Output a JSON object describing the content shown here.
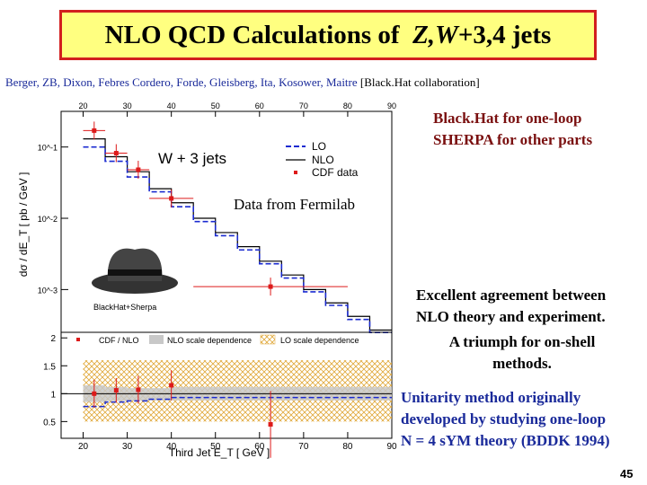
{
  "title": {
    "prefix": "NLO QCD Calculations of",
    "process": "Z,W",
    "suffix": "+3,4 jets"
  },
  "authors": "Berger, ZB, Dixon, Febres Cordero, Forde, Gleisberg, Ita, Kosower, Maitre",
  "collab": "[Black.Hat collaboration]",
  "notes": {
    "blackhat_line1": "Black.Hat for one-loop",
    "blackhat_line2": "SHERPA for other parts",
    "data_source": "Data from Fermilab",
    "agreement_line1": "Excellent agreement between",
    "agreement_line2": "NLO theory and experiment.",
    "triumph_line1": "A triumph for on-shell",
    "triumph_line2": "methods.",
    "unitarity_line1": "Unitarity method originally",
    "unitarity_line2": "developed by studying one-loop",
    "unitarity_line3": "N = 4 sYM theory (BDDK 1994)"
  },
  "page_number": "45",
  "colors": {
    "title_bg": "#ffff80",
    "title_border": "#d21f1f",
    "lo": "#1a2ad0",
    "data": "#dd1a1a",
    "lo_band": "#f2c94c"
  },
  "chart_data": [
    {
      "type": "line",
      "title": "W + 3 jets",
      "ylabel": "dσ / dE_T [ pb / GeV ]",
      "xlabel": "Third Jet E_T [ GeV ]",
      "x_top_ticks": [
        "20",
        "30",
        "40",
        "50",
        "60",
        "70",
        "80",
        "90"
      ],
      "y_tick_labels": [
        "10^-1",
        "10^-2",
        "10^-3"
      ],
      "xlim": [
        15,
        90
      ],
      "ylog_range": [
        -3.6,
        -0.5
      ],
      "bin_edges": [
        20,
        25,
        30,
        35,
        40,
        45,
        50,
        55,
        60,
        65,
        70,
        75,
        80,
        85,
        90
      ],
      "series": [
        {
          "name": "LO",
          "values": [
            0.1,
            0.063,
            0.038,
            0.0235,
            0.0145,
            0.009,
            0.0057,
            0.0036,
            0.0023,
            0.00145,
            0.00093,
            0.0006,
            0.00038,
            0.00025
          ]
        },
        {
          "name": "NLO",
          "values": [
            0.13,
            0.073,
            0.045,
            0.026,
            0.0165,
            0.01,
            0.0063,
            0.004,
            0.0025,
            0.0016,
            0.001,
            0.00065,
            0.00042,
            0.00027
          ]
        }
      ],
      "cdf_data": [
        {
          "x": 22.5,
          "y": 0.17,
          "xerr": 2.5
        },
        {
          "x": 27.5,
          "y": 0.082,
          "xerr": 2.5
        },
        {
          "x": 32.5,
          "y": 0.048,
          "xerr": 2.5
        },
        {
          "x": 40,
          "y": 0.019,
          "xerr": 5
        },
        {
          "x": 62.5,
          "y": 0.0011,
          "xerr": 17.5
        }
      ],
      "legend": [
        "LO",
        "NLO",
        "CDF data"
      ],
      "logo_label": "BlackHat+Sherpa"
    },
    {
      "type": "line",
      "legend": [
        "CDF / NLO",
        "NLO scale dependence",
        "LO scale dependence"
      ],
      "xlabel": "Third Jet E_T [ GeV ]",
      "x_ticks": [
        "20",
        "30",
        "40",
        "50",
        "60",
        "70",
        "80",
        "90"
      ],
      "y_ticks": [
        "0.5",
        "1",
        "1.5",
        "2"
      ],
      "ylim": [
        0.2,
        2.1
      ],
      "bin_edges": [
        20,
        25,
        30,
        35,
        40,
        90
      ],
      "lo_ratio": [
        0.77,
        0.85,
        0.87,
        0.9,
        0.93
      ],
      "nlo_band": [
        [
          0.85,
          1.15
        ],
        [
          0.87,
          1.12
        ],
        [
          0.88,
          1.1
        ],
        [
          0.88,
          1.1
        ],
        [
          0.88,
          1.12
        ]
      ],
      "lo_band": [
        [
          0.5,
          1.6
        ],
        [
          0.5,
          1.6
        ],
        [
          0.5,
          1.6
        ],
        [
          0.5,
          1.6
        ],
        [
          0.5,
          1.6
        ]
      ],
      "cdf_ratio": [
        {
          "x": 22.5,
          "y": 1.0,
          "yerr": 0.25
        },
        {
          "x": 27.5,
          "y": 1.06,
          "yerr": 0.22
        },
        {
          "x": 32.5,
          "y": 1.07,
          "yerr": 0.25
        },
        {
          "x": 40,
          "y": 1.15,
          "yerr": 0.27
        },
        {
          "x": 62.5,
          "y": 0.45,
          "yerr": 0.6
        }
      ]
    }
  ]
}
